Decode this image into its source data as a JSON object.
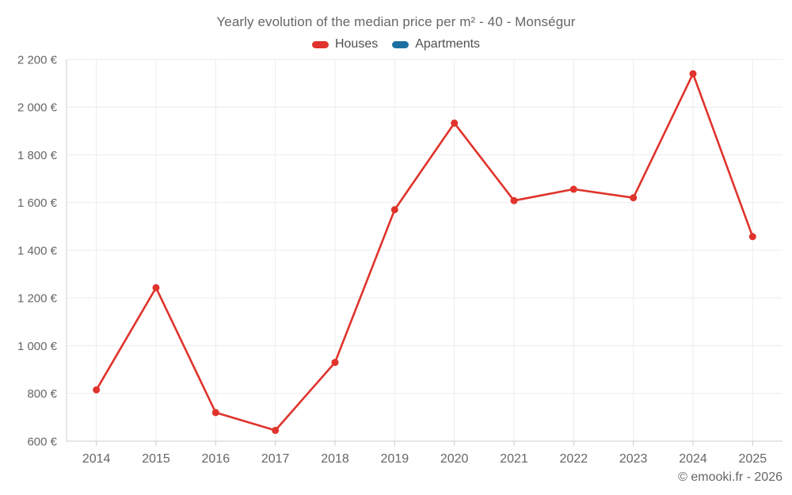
{
  "title": "Yearly evolution of the median price per m² - 40 - Monségur",
  "footer": "© emooki.fr - 2026",
  "colors": {
    "houses": "#df332b",
    "apartments": "#1b70a1",
    "gridline": "#ececec",
    "axis": "#cccccc",
    "text": "#666666"
  },
  "chart_data": {
    "type": "line",
    "title": "Yearly evolution of the median price per m² - 40 - Monségur",
    "categories": [
      "2014",
      "2015",
      "2016",
      "2017",
      "2018",
      "2019",
      "2020",
      "2021",
      "2022",
      "2023",
      "2024",
      "2025"
    ],
    "series": [
      {
        "name": "Houses",
        "color": "#df332b",
        "values": [
          815,
          1243,
          720,
          645,
          930,
          1570,
          1933,
          1608,
          1656,
          1620,
          2140,
          1457
        ]
      },
      {
        "name": "Apartments",
        "color": "#1b70a1",
        "values": []
      }
    ],
    "xlabel": "",
    "ylabel": "",
    "ylim": [
      600,
      2200
    ],
    "ytick_step": 200,
    "ytick_labels": [
      "600 €",
      "800 €",
      "1 000 €",
      "1 200 €",
      "1 400 €",
      "1 600 €",
      "1 800 €",
      "2 000 €",
      "2 200 €"
    ],
    "grid": true,
    "legend_position": "top",
    "value_suffix": " €"
  }
}
